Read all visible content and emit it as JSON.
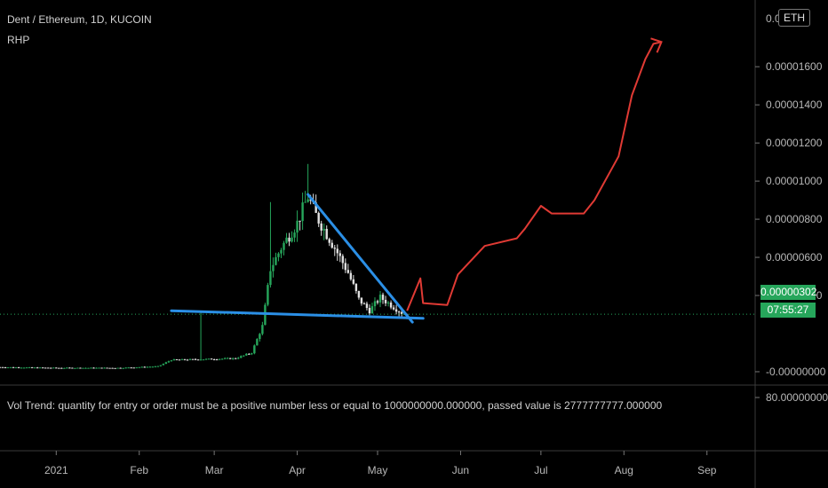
{
  "header": {
    "symbol_title": "Dent / Ethereum, 1D, KUCOIN",
    "indicator_label": "RHP",
    "currency_button": "ETH"
  },
  "indicator_message": "Vol Trend: quantity for entry or order must be a positive number less or equal to 1000000000.000000, passed value is 2777777777.000000",
  "price_scale": {
    "last_price": "0.00000302",
    "countdown": "07:55:27",
    "labels": [
      "0.0(",
      "0.00001600",
      "0.00001400",
      "0.00001200",
      "0.00001000",
      "0.00000800",
      "0.00000600",
      "0.00000400",
      "-0.00000000"
    ],
    "lower_pane_label": "80.00000000"
  },
  "colors": {
    "up": "#26a65b",
    "down": "#e0e0e0",
    "trendline": "#2b8fe6",
    "projection": "#e03a34",
    "last_price_line": "#26a65b"
  },
  "chart_data": {
    "type": "candlestick",
    "title": "Dent / Ethereum, 1D, KUCOIN",
    "x_ticks": [
      "2021",
      "Feb",
      "Mar",
      "Apr",
      "May",
      "Jun",
      "Jul",
      "Aug",
      "Sep"
    ],
    "x_range": [
      "2020-12-11",
      "2021-09-19"
    ],
    "y_ticks": [
      1.6e-05,
      1.4e-05,
      1.2e-05,
      1e-05,
      8e-06,
      6e-06,
      4e-06,
      0
    ],
    "ylim": [
      -7e-07,
      1.95e-05
    ],
    "last_price": 3.02e-06,
    "price_path": [
      [
        "2020-12-11",
        2.4e-07
      ],
      [
        "2021-01-01",
        2e-07
      ],
      [
        "2021-01-25",
        2e-07
      ],
      [
        "2021-02-08",
        2.8e-07
      ],
      [
        "2021-02-13",
        6.2e-07
      ],
      [
        "2021-02-24",
        6.5e-07
      ],
      [
        "2021-03-09",
        7e-07
      ],
      [
        "2021-03-15",
        1e-06
      ],
      [
        "2021-03-19",
        2.4e-06
      ],
      [
        "2021-03-22",
        5.4e-06
      ],
      [
        "2021-03-26",
        6.5e-06
      ],
      [
        "2021-04-01",
        7.8e-06
      ],
      [
        "2021-04-05",
        9.2e-06
      ],
      [
        "2021-04-08",
        8.2e-06
      ],
      [
        "2021-04-15",
        6.5e-06
      ],
      [
        "2021-04-20",
        5.2e-06
      ],
      [
        "2021-04-24",
        3.8e-06
      ],
      [
        "2021-04-28",
        3.2e-06
      ],
      [
        "2021-05-02",
        3.9e-06
      ],
      [
        "2021-05-06",
        3.5e-06
      ],
      [
        "2021-05-10",
        3.1e-06
      ],
      [
        "2021-05-12",
        3.02e-06
      ]
    ],
    "peak_wick": {
      "date": "2021-04-05",
      "high": 1.09e-05
    },
    "annotations": [
      {
        "type": "trendline",
        "name": "support",
        "points": [
          [
            "2021-02-13",
            3.2e-06
          ],
          [
            "2021-05-18",
            2.8e-06
          ]
        ]
      },
      {
        "type": "trendline",
        "name": "resistance",
        "points": [
          [
            "2021-04-05",
            9.3e-06
          ],
          [
            "2021-05-14",
            2.6e-06
          ]
        ]
      },
      {
        "type": "projection",
        "points": [
          [
            "2021-05-12",
            3.2e-06
          ],
          [
            "2021-05-17",
            4.9e-06
          ],
          [
            "2021-05-18",
            3.6e-06
          ],
          [
            "2021-05-27",
            3.5e-06
          ],
          [
            "2021-05-31",
            5.1e-06
          ],
          [
            "2021-06-10",
            6.6e-06
          ],
          [
            "2021-06-22",
            7e-06
          ],
          [
            "2021-06-25",
            7.5e-06
          ],
          [
            "2021-07-01",
            8.7e-06
          ],
          [
            "2021-07-05",
            8.3e-06
          ],
          [
            "2021-07-17",
            8.3e-06
          ],
          [
            "2021-07-21",
            9e-06
          ],
          [
            "2021-07-30",
            1.13e-05
          ],
          [
            "2021-08-04",
            1.45e-05
          ],
          [
            "2021-08-09",
            1.64e-05
          ],
          [
            "2021-08-12",
            1.72e-05
          ],
          [
            "2021-08-15",
            1.73e-05
          ]
        ]
      }
    ]
  }
}
